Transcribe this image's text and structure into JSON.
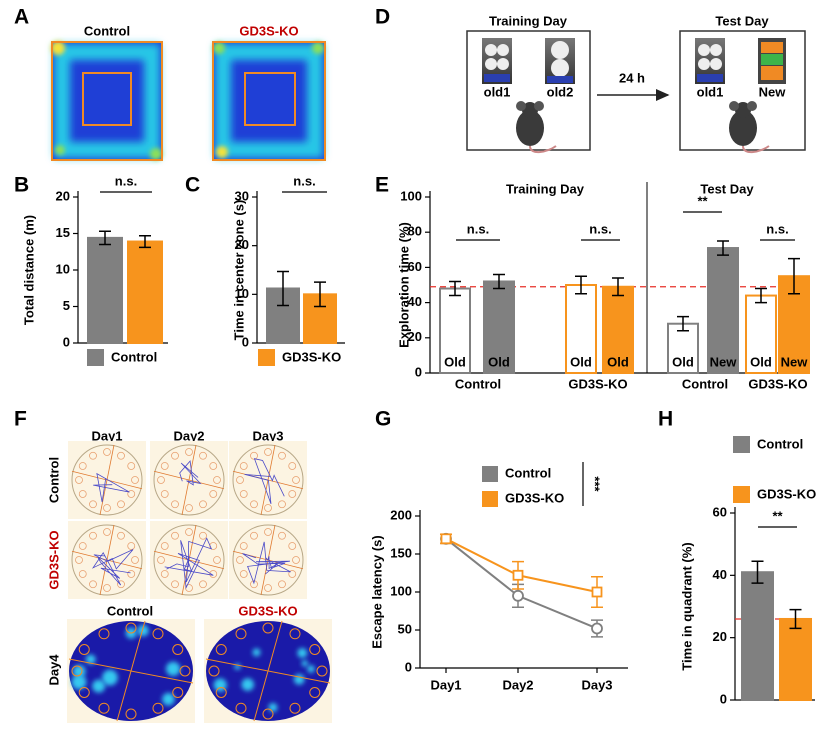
{
  "figure": {
    "panel_a": {
      "letter": "A",
      "control": "Control",
      "ko": "GD3S-KO"
    },
    "panel_d": {
      "letter": "D",
      "training": "Training Day",
      "test": "Test Day",
      "old1": "old1",
      "old2": "old2",
      "interval": "24 h",
      "test_old": "old1",
      "test_new": "New"
    },
    "panel_f": {
      "letter": "F",
      "days": [
        "Day1",
        "Day2",
        "Day3"
      ],
      "rows": [
        "Control",
        "GD3S-KO"
      ],
      "day4_groups": [
        "Control",
        "GD3S-KO"
      ],
      "day4": "Day4"
    }
  },
  "chart_data": [
    {
      "type": "bar",
      "panel": "B",
      "ylabel": "Total distance (m)",
      "values": [
        14.4,
        13.9
      ],
      "errors": [
        0.9,
        0.8
      ],
      "colors": [
        "#808080",
        "#f7941d"
      ],
      "ylim": [
        0,
        20
      ],
      "yticks": [
        0,
        5,
        10,
        15,
        20
      ],
      "annotations": [
        "n.s."
      ],
      "legend": [
        {
          "name": "Control",
          "color": "#808080",
          "label_color": "#000000"
        }
      ]
    },
    {
      "type": "bar",
      "panel": "C",
      "ylabel": "Time in center zone (s)",
      "values": [
        11.2,
        10.0
      ],
      "errors": [
        3.5,
        2.5
      ],
      "colors": [
        "#808080",
        "#f7941d"
      ],
      "ylim": [
        0,
        30
      ],
      "yticks": [
        0,
        10,
        20,
        30
      ],
      "annotations": [
        "n.s."
      ],
      "legend": [
        {
          "name": "GD3S-KO",
          "color": "#f7941d",
          "label_color": "#c00000"
        }
      ]
    },
    {
      "type": "bar",
      "panel": "E",
      "ylabel": "Exploration time (%)",
      "categories": [
        "Old",
        "Old",
        "Old",
        "Old",
        "Old",
        "New",
        "Old",
        "New"
      ],
      "values": [
        48,
        52,
        50,
        49,
        28,
        71,
        44,
        55
      ],
      "errors": [
        4,
        4,
        5,
        5,
        4,
        4,
        4,
        10
      ],
      "colors": [
        "#808080",
        "#808080",
        "#f7941d",
        "#f7941d",
        "#808080",
        "#808080",
        "#f7941d",
        "#f7941d"
      ],
      "fills": [
        "#ffffff",
        "#808080",
        "#ffffff",
        "#f7941d",
        "#ffffff",
        "#808080",
        "#ffffff",
        "#f7941d"
      ],
      "ylim": [
        0,
        100
      ],
      "yticks": [
        0,
        20,
        40,
        60,
        80,
        100
      ],
      "reference_line": 49,
      "reference_color": "#e8302a",
      "group_labels": [
        "Control",
        "GD3S-KO",
        "Control",
        "GD3S-KO"
      ],
      "section_labels": [
        "Training Day",
        "Test Day"
      ],
      "annotations": [
        "n.s.",
        "n.s.",
        "**",
        "n.s."
      ]
    },
    {
      "type": "line",
      "panel": "G",
      "ylabel": "Escape latency (s)",
      "categories": [
        "Day1",
        "Day2",
        "Day3"
      ],
      "series": [
        {
          "name": "Control",
          "color": "#808080",
          "label_color": "#000000",
          "marker": "circle",
          "values": [
            170,
            95,
            52
          ],
          "errors": [
            6,
            15,
            11
          ]
        },
        {
          "name": "GD3S-KO",
          "color": "#f7941d",
          "label_color": "#c00000",
          "marker": "square",
          "values": [
            170,
            122,
            100
          ],
          "errors": [
            6,
            18,
            20
          ]
        }
      ],
      "ylim": [
        0,
        200
      ],
      "yticks": [
        0,
        50,
        100,
        150,
        200
      ],
      "annotations": [
        "***"
      ]
    },
    {
      "type": "bar",
      "panel": "H",
      "ylabel": "Time in quadrant (%)",
      "values": [
        41,
        26
      ],
      "errors": [
        3.5,
        3
      ],
      "colors": [
        "#808080",
        "#f7941d"
      ],
      "ylim": [
        0,
        60
      ],
      "yticks": [
        0,
        20,
        40,
        60
      ],
      "reference_line": 26,
      "reference_color": "#e8302a",
      "annotations": [
        "**"
      ],
      "legend": [
        {
          "name": "Control",
          "color": "#808080",
          "label_color": "#000000"
        },
        {
          "name": "GD3S-KO",
          "color": "#f7941d",
          "label_color": "#c00000"
        }
      ]
    }
  ]
}
